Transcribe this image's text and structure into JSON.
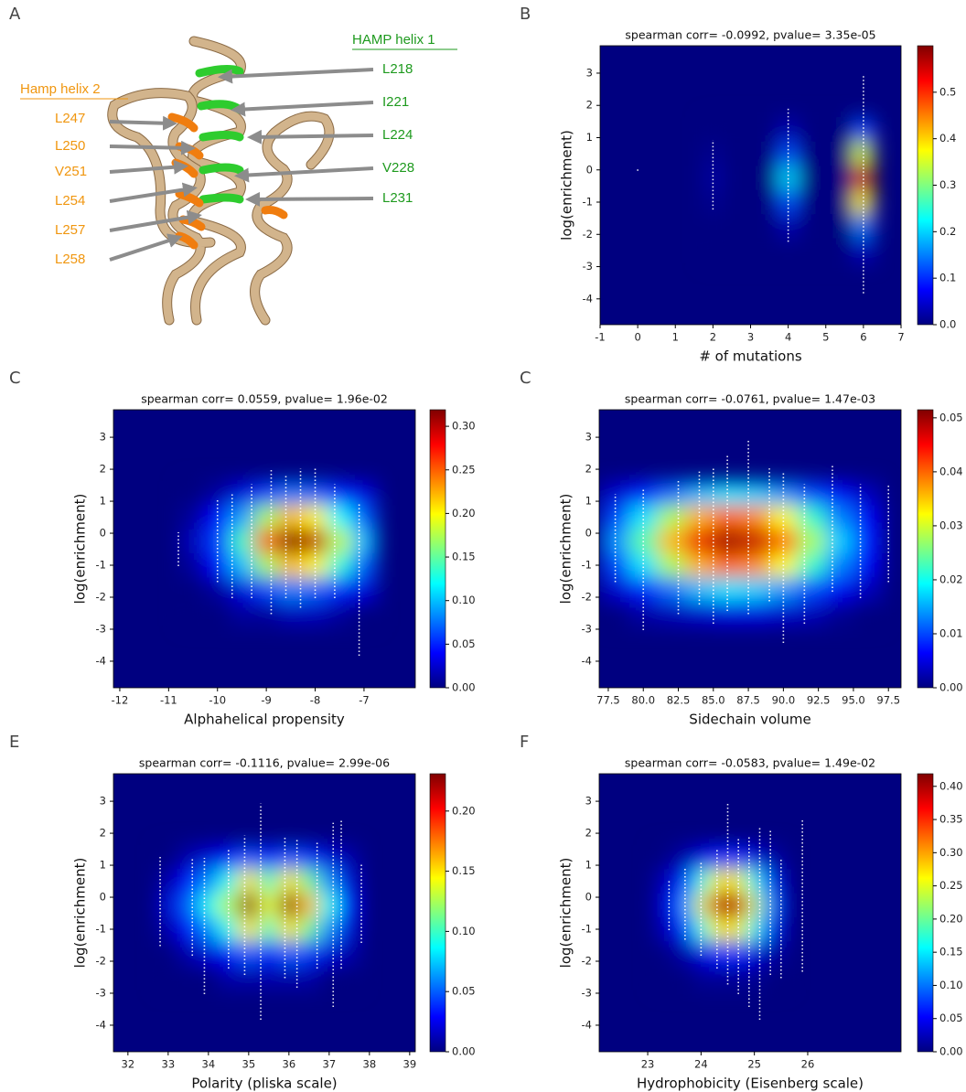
{
  "diagram": {
    "panel_label": "A",
    "helix1": {
      "title": "HAMP helix 1",
      "residues": [
        "L218",
        "I221",
        "L224",
        "V228",
        "L231"
      ]
    },
    "helix2": {
      "title": "Hamp helix 2",
      "residues": [
        "L247",
        "L250",
        "V251",
        "L254",
        "L257",
        "L258"
      ]
    }
  },
  "chart_data": [
    {
      "type": "heatmap",
      "panel_label": "B",
      "title": "spearman corr= -0.0992, pvalue= 3.35e-05",
      "xlabel": "# of mutations",
      "ylabel": "log(enrichment)",
      "colormap": "jet",
      "xlim": [
        -1,
        7
      ],
      "ylim": [
        -4.8,
        3.85
      ],
      "xticks": [
        -1,
        0,
        1,
        2,
        3,
        4,
        5,
        6,
        7
      ],
      "yticks": [
        -4,
        -3,
        -2,
        -1,
        0,
        1,
        2,
        3
      ],
      "clim": [
        0,
        0.6
      ],
      "cticks": [
        {
          "value": 0,
          "label": "0.0"
        },
        0.1,
        0.2,
        0.3,
        0.4,
        0.5
      ],
      "density": {
        "x": [
          2,
          2.5,
          3,
          3.5,
          4,
          4.5,
          5,
          5.5,
          6
        ],
        "y": [
          1.25,
          0.5,
          -0.25,
          -1,
          -1.75,
          -2.5
        ],
        "z": [
          [
            0,
            0,
            0,
            0,
            0.03,
            0,
            0,
            0,
            0.12
          ],
          [
            0.01,
            0,
            0,
            0,
            0.12,
            0,
            0,
            0,
            0.35
          ],
          [
            0.02,
            0,
            0,
            0,
            0.2,
            0,
            0,
            0,
            0.55
          ],
          [
            0.01,
            0,
            0,
            0,
            0.12,
            0,
            0,
            0,
            0.38
          ],
          [
            0,
            0,
            0,
            0,
            0.03,
            0,
            0,
            0,
            0.15
          ],
          [
            0,
            0,
            0,
            0,
            0,
            0,
            0,
            0,
            0.04
          ]
        ]
      },
      "strips": {
        "color": "#ffffff",
        "x": [
          0,
          2,
          4,
          6
        ],
        "low": [
          0,
          -1.2,
          -2.2,
          -3.8
        ],
        "high": [
          0,
          0.9,
          1.9,
          2.9
        ]
      }
    },
    {
      "type": "heatmap",
      "panel_label": "C",
      "title": "spearman corr= 0.0559, pvalue= 1.96e-02",
      "xlabel": "Alphahelical propensity",
      "ylabel": "log(enrichment)",
      "colormap": "jet",
      "xlim": [
        -12.13,
        -5.95
      ],
      "ylim": [
        -4.83,
        3.86
      ],
      "xticks": [
        -12,
        -11,
        -10,
        -9,
        -8,
        -7
      ],
      "yticks": [
        -4,
        -3,
        -2,
        -1,
        0,
        1,
        2,
        3
      ],
      "clim": [
        0,
        0.319
      ],
      "cticks": [
        {
          "value": 0,
          "label": "0.00"
        },
        0.05,
        {
          "value": 0.1,
          "label": "0.10"
        },
        0.15,
        {
          "value": 0.2,
          "label": "0.20"
        },
        0.25,
        {
          "value": 0.3,
          "label": "0.30"
        }
      ],
      "density": {
        "x": [
          -10.5,
          -10,
          -9.5,
          -9,
          -8.5,
          -8,
          -7.5,
          -7
        ],
        "y": [
          1.25,
          0.5,
          -0.25,
          -1,
          -1.75,
          -2.5
        ],
        "z": [
          [
            0,
            0.01,
            0.03,
            0.06,
            0.08,
            0.07,
            0.05,
            0.03
          ],
          [
            0.01,
            0.04,
            0.09,
            0.17,
            0.22,
            0.2,
            0.12,
            0.07
          ],
          [
            0.02,
            0.06,
            0.14,
            0.25,
            0.32,
            0.3,
            0.18,
            0.1
          ],
          [
            0.01,
            0.04,
            0.1,
            0.17,
            0.22,
            0.2,
            0.13,
            0.07
          ],
          [
            0,
            0.01,
            0.03,
            0.06,
            0.08,
            0.07,
            0.05,
            0.03
          ],
          [
            0,
            0,
            0.01,
            0.01,
            0.02,
            0.02,
            0.01,
            0
          ]
        ]
      },
      "strips": {
        "color": "#ffffff",
        "x": [
          -10.8,
          -10,
          -9.7,
          -9.3,
          -8.9,
          -8.6,
          -8.3,
          -8,
          -7.6,
          -7.1
        ],
        "low": [
          -1,
          -1.5,
          -2,
          -2,
          -2.5,
          -2,
          -2.3,
          -2,
          -2,
          -3.8
        ],
        "high": [
          0,
          1,
          1.2,
          1.5,
          2,
          1.8,
          2,
          2,
          1.5,
          0.9
        ]
      }
    },
    {
      "type": "heatmap",
      "panel_label": "C",
      "title": "spearman corr= -0.0761, pvalue= 1.47e-03",
      "xlabel": "Sidechain volume",
      "ylabel": "log(enrichment)",
      "colormap": "jet",
      "xlim": [
        76.85,
        98.4
      ],
      "ylim": [
        -4.83,
        3.86
      ],
      "xticks": [
        77.5,
        {
          "value": 80,
          "label": "80.0"
        },
        82.5,
        {
          "value": 85,
          "label": "85.0"
        },
        87.5,
        {
          "value": 90,
          "label": "90.0"
        },
        92.5,
        {
          "value": 95,
          "label": "95.0"
        },
        97.5
      ],
      "yticks": [
        -4,
        -3,
        -2,
        -1,
        0,
        1,
        2,
        3
      ],
      "clim": [
        0,
        0.0515
      ],
      "cticks": [
        {
          "value": 0,
          "label": "0.00"
        },
        0.01,
        0.02,
        0.03,
        0.04,
        0.05
      ],
      "density": {
        "x": [
          78,
          80,
          82,
          84,
          86,
          88,
          90,
          92,
          94,
          96
        ],
        "y": [
          1.25,
          0.5,
          -0.25,
          -1,
          -1.75,
          -2.5
        ],
        "z": [
          [
            0.004,
            0.008,
            0.012,
            0.016,
            0.018,
            0.017,
            0.014,
            0.01,
            0.006,
            0.003
          ],
          [
            0.01,
            0.018,
            0.028,
            0.036,
            0.04,
            0.038,
            0.032,
            0.022,
            0.013,
            0.006
          ],
          [
            0.014,
            0.024,
            0.036,
            0.046,
            0.05,
            0.048,
            0.04,
            0.028,
            0.017,
            0.008
          ],
          [
            0.01,
            0.018,
            0.028,
            0.036,
            0.04,
            0.038,
            0.032,
            0.022,
            0.013,
            0.006
          ],
          [
            0.004,
            0.008,
            0.012,
            0.016,
            0.018,
            0.017,
            0.014,
            0.01,
            0.006,
            0.003
          ],
          [
            0,
            0.002,
            0.003,
            0.004,
            0.005,
            0.005,
            0.004,
            0.003,
            0.001,
            0
          ]
        ]
      },
      "strips": {
        "color": "#ffffff",
        "x": [
          78,
          80,
          82.5,
          84,
          85,
          86,
          87.5,
          89,
          90,
          91.5,
          93.5,
          95.5,
          97.5
        ],
        "low": [
          -1.5,
          -3,
          -2.5,
          -2.2,
          -2.8,
          -2.4,
          -2.5,
          -2.1,
          -3.4,
          -2.8,
          -1.8,
          -2,
          -1.5
        ],
        "high": [
          1.2,
          1.4,
          1.6,
          1.9,
          2,
          2.4,
          2.9,
          2,
          1.9,
          1.5,
          2.1,
          1.5,
          1.5
        ]
      }
    },
    {
      "type": "heatmap",
      "panel_label": "E",
      "title": "spearman corr= -0.1116, pvalue= 2.99e-06",
      "xlabel": "Polarity (pliska scale)",
      "ylabel": "log(enrichment)",
      "colormap": "jet",
      "xlim": [
        31.64,
        39.14
      ],
      "ylim": [
        -4.83,
        3.86
      ],
      "xticks": [
        32,
        33,
        34,
        35,
        36,
        37,
        38,
        39
      ],
      "yticks": [
        -4,
        -3,
        -2,
        -1,
        0,
        1,
        2,
        3
      ],
      "clim": [
        0,
        0.231
      ],
      "cticks": [
        {
          "value": 0,
          "label": "0.00"
        },
        0.05,
        {
          "value": 0.1,
          "label": "0.10"
        },
        0.15,
        {
          "value": 0.2,
          "label": "0.20"
        }
      ],
      "density": {
        "x": [
          33,
          33.5,
          34,
          34.5,
          35,
          35.5,
          36,
          36.5,
          37,
          37.5
        ],
        "y": [
          1.25,
          0.5,
          -0.25,
          -1,
          -1.75,
          -2.5
        ],
        "z": [
          [
            0,
            0.01,
            0.02,
            0.03,
            0.05,
            0.03,
            0.05,
            0.04,
            0.02,
            0.01
          ],
          [
            0.01,
            0.03,
            0.06,
            0.09,
            0.15,
            0.1,
            0.15,
            0.11,
            0.06,
            0.02
          ],
          [
            0.02,
            0.05,
            0.09,
            0.13,
            0.23,
            0.14,
            0.23,
            0.16,
            0.09,
            0.03
          ],
          [
            0.01,
            0.03,
            0.06,
            0.09,
            0.15,
            0.1,
            0.15,
            0.11,
            0.06,
            0.02
          ],
          [
            0,
            0.01,
            0.02,
            0.03,
            0.05,
            0.03,
            0.05,
            0.04,
            0.02,
            0.01
          ],
          [
            0,
            0,
            0,
            0.01,
            0.01,
            0.01,
            0.01,
            0.01,
            0,
            0
          ]
        ]
      },
      "strips": {
        "color": "#ffffff",
        "x": [
          32.8,
          33.6,
          33.9,
          34.5,
          34.9,
          35.3,
          35.9,
          36.2,
          36.7,
          37.1,
          37.3,
          37.8
        ],
        "low": [
          -1.5,
          -1.8,
          -3,
          -2.2,
          -2.4,
          -3.8,
          -2.5,
          -2.8,
          -2.2,
          -3.4,
          -2.2,
          -1.4
        ],
        "high": [
          1.3,
          1.2,
          1.2,
          1.5,
          1.9,
          2.9,
          1.9,
          1.8,
          1.7,
          2.3,
          2.4,
          1
        ]
      }
    },
    {
      "type": "heatmap",
      "panel_label": "F",
      "title": "spearman corr= -0.0583, pvalue= 1.49e-02",
      "xlabel": "Hydrophobicity (Eisenberg scale)",
      "ylabel": "log(enrichment)",
      "colormap": "jet",
      "xlim": [
        22.09,
        27.75
      ],
      "ylim": [
        -4.83,
        3.86
      ],
      "xticks": [
        23,
        24,
        25,
        26
      ],
      "yticks": [
        -4,
        -3,
        -2,
        -1,
        0,
        1,
        2,
        3
      ],
      "clim": [
        0,
        0.419
      ],
      "cticks": [
        {
          "value": 0,
          "label": "0.00"
        },
        0.05,
        {
          "value": 0.1,
          "label": "0.10"
        },
        0.15,
        {
          "value": 0.2,
          "label": "0.20"
        },
        0.25,
        {
          "value": 0.3,
          "label": "0.30"
        },
        0.35,
        {
          "value": 0.4,
          "label": "0.40"
        }
      ],
      "density": {
        "x": [
          23.25,
          23.5,
          23.75,
          24,
          24.25,
          24.5,
          24.75,
          25,
          25.25,
          25.5
        ],
        "y": [
          1.25,
          0.5,
          -0.25,
          -1,
          -1.75,
          -2.5
        ],
        "z": [
          [
            0,
            0.01,
            0.02,
            0.04,
            0.06,
            0.07,
            0.06,
            0.04,
            0.02,
            0.01
          ],
          [
            0.02,
            0.04,
            0.08,
            0.16,
            0.25,
            0.28,
            0.25,
            0.16,
            0.08,
            0.03
          ],
          [
            0.03,
            0.06,
            0.12,
            0.25,
            0.38,
            0.42,
            0.38,
            0.24,
            0.12,
            0.04
          ],
          [
            0.02,
            0.04,
            0.08,
            0.16,
            0.25,
            0.28,
            0.25,
            0.16,
            0.08,
            0.03
          ],
          [
            0,
            0.01,
            0.02,
            0.04,
            0.06,
            0.07,
            0.06,
            0.04,
            0.02,
            0.01
          ],
          [
            0,
            0,
            0,
            0.01,
            0.01,
            0.01,
            0.01,
            0.01,
            0,
            0
          ]
        ]
      },
      "strips": {
        "color": "#ffffff",
        "x": [
          23.4,
          23.7,
          24,
          24.3,
          24.5,
          24.7,
          24.9,
          25.1,
          25.3,
          25.5,
          25.9
        ],
        "low": [
          -1,
          -1.3,
          -1.8,
          -2.2,
          -2.7,
          -3,
          -3.4,
          -3.8,
          -2.4,
          -2.5,
          -2.3
        ],
        "high": [
          0.5,
          0.9,
          1.1,
          1.5,
          2.9,
          1.8,
          1.9,
          2.2,
          2.1,
          1.2,
          2.4
        ]
      }
    }
  ]
}
